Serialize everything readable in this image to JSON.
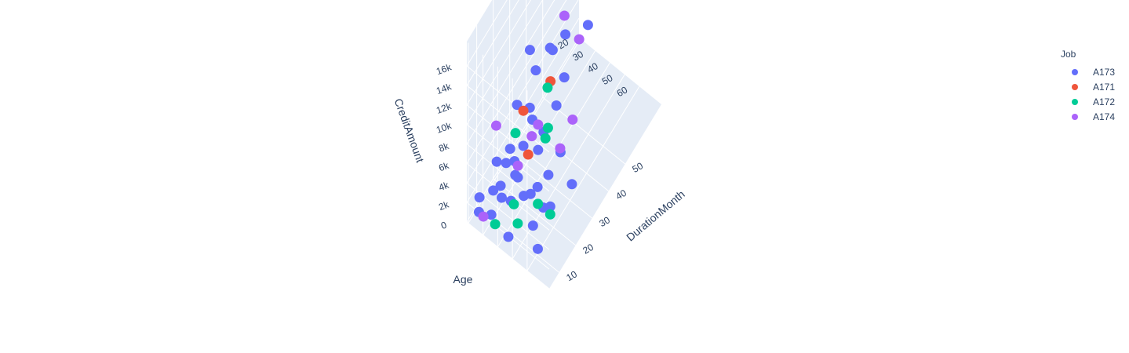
{
  "chart_data": {
    "type": "scatter3d",
    "axes": {
      "x": {
        "label": "DurationMonth",
        "ticks": [
          10,
          20,
          30,
          40,
          50
        ],
        "tick_labels": [
          "10",
          "20",
          "30",
          "40",
          "50"
        ],
        "range": [
          4,
          72
        ]
      },
      "y": {
        "label": "Age",
        "ticks": [
          20,
          30,
          40,
          50,
          60
        ],
        "tick_labels": [
          "20",
          "30",
          "40",
          "50",
          "60"
        ],
        "range": [
          19,
          75
        ]
      },
      "z": {
        "label": "CreditAmount",
        "ticks": [
          0,
          2000,
          4000,
          6000,
          8000,
          10000,
          12000,
          14000,
          16000
        ],
        "tick_labels": [
          "0",
          "2k",
          "4k",
          "6k",
          "8k",
          "10k",
          "12k",
          "14k",
          "16k"
        ],
        "range": [
          0,
          18500
        ]
      }
    },
    "legend": {
      "title": "Job",
      "placement": "top-right"
    },
    "series": [
      {
        "name": "A173",
        "color": "#636efa",
        "points": [
          [
            6,
            25,
            1200
          ],
          [
            12,
            28,
            2100
          ],
          [
            18,
            30,
            3500
          ],
          [
            24,
            35,
            4200
          ],
          [
            12,
            40,
            2500
          ],
          [
            36,
            30,
            8000
          ],
          [
            48,
            28,
            6500
          ],
          [
            24,
            45,
            5000
          ],
          [
            12,
            55,
            1800
          ],
          [
            6,
            65,
            2300
          ],
          [
            18,
            38,
            3000
          ],
          [
            30,
            42,
            4800
          ],
          [
            42,
            33,
            9000
          ],
          [
            24,
            26,
            2800
          ],
          [
            15,
            50,
            3600
          ],
          [
            9,
            22,
            1500
          ],
          [
            21,
            48,
            2400
          ],
          [
            27,
            36,
            7400
          ],
          [
            36,
            44,
            6100
          ],
          [
            48,
            52,
            12000
          ],
          [
            60,
            35,
            15000
          ],
          [
            24,
            29,
            1900
          ],
          [
            12,
            33,
            3200
          ],
          [
            18,
            60,
            2700
          ],
          [
            30,
            24,
            5400
          ],
          [
            45,
            40,
            10400
          ],
          [
            9,
            30,
            700
          ],
          [
            15,
            27,
            4100
          ],
          [
            24,
            52,
            3300
          ],
          [
            36,
            26,
            9600
          ],
          [
            6,
            45,
            1100
          ],
          [
            12,
            62,
            4500
          ],
          [
            20,
            34,
            2200
          ],
          [
            33,
            31,
            3900
          ],
          [
            24,
            68,
            4300
          ],
          [
            39,
            46,
            8400
          ],
          [
            54,
            28,
            11200
          ],
          [
            18,
            42,
            1600
          ],
          [
            10,
            36,
            2900
          ],
          [
            26,
            58,
            5800
          ]
        ]
      },
      {
        "name": "A171",
        "color": "#ef553b",
        "points": [
          [
            24,
            35,
            7800
          ],
          [
            36,
            40,
            8100
          ],
          [
            18,
            45,
            6200
          ]
        ]
      },
      {
        "name": "A172",
        "color": "#00cc96",
        "points": [
          [
            12,
            42,
            2400
          ],
          [
            18,
            60,
            1900
          ],
          [
            24,
            50,
            6800
          ],
          [
            36,
            38,
            7200
          ],
          [
            30,
            45,
            5600
          ],
          [
            15,
            55,
            3200
          ],
          [
            6,
            36,
            1300
          ],
          [
            9,
            48,
            2000
          ],
          [
            21,
            33,
            6100
          ]
        ]
      },
      {
        "name": "A174",
        "color": "#ab63fa",
        "points": [
          [
            60,
            28,
            14500
          ],
          [
            48,
            36,
            11000
          ],
          [
            24,
            45,
            7600
          ],
          [
            36,
            55,
            6000
          ],
          [
            12,
            30,
            9000
          ],
          [
            42,
            32,
            15800
          ],
          [
            18,
            38,
            4200
          ],
          [
            48,
            46,
            9800
          ],
          [
            30,
            34,
            3400
          ],
          [
            24,
            60,
            7000
          ],
          [
            6,
            28,
            1100
          ]
        ]
      }
    ]
  }
}
